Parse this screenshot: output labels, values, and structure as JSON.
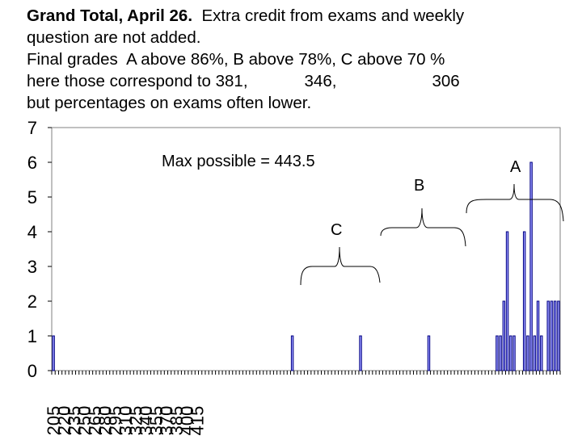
{
  "header": {
    "title_bold": "Grand Total, April 26.",
    "title_rest": "Extra credit from exams and weekly",
    "line2": "question are not added.",
    "line3": "Final grades  A above 86%, B above 78%, C above 70 %",
    "line4_prefix": "here those correspond to 381,",
    "line4_b": "346,",
    "line4_c": "306",
    "line5": "but percentages on exams often lower."
  },
  "chart_data": {
    "type": "bar",
    "title": "",
    "xlabel": "",
    "ylabel": "",
    "ylim": [
      0,
      7
    ],
    "y_ticks": [
      "0",
      "1",
      "2",
      "3",
      "4",
      "5",
      "6",
      "7"
    ],
    "x_tick_labels": [
      "205",
      "220",
      "235",
      "250",
      "265",
      "280",
      "295",
      "310",
      "325",
      "340",
      "355",
      "370",
      "385",
      "400",
      "415"
    ],
    "x_start": 205,
    "x_step": 5,
    "bar_color": "#9999ff",
    "bar_edge": "#000080",
    "grid": false,
    "values": [
      1,
      0,
      0,
      0,
      0,
      0,
      0,
      0,
      0,
      0,
      0,
      0,
      0,
      0,
      0,
      0,
      0,
      0,
      0,
      0,
      0,
      0,
      0,
      0,
      0,
      0,
      0,
      0,
      0,
      0,
      0,
      0,
      0,
      0,
      0,
      0,
      0,
      0,
      0,
      0,
      0,
      0,
      0,
      0,
      0,
      0,
      0,
      0,
      0,
      0,
      0,
      0,
      0,
      0,
      0,
      0,
      0,
      0,
      0,
      0,
      0,
      0,
      0,
      0,
      0,
      0,
      0,
      0,
      0,
      0,
      1,
      0,
      0,
      0,
      0,
      0,
      0,
      0,
      0,
      0,
      0,
      0,
      0,
      0,
      0,
      0,
      0,
      0,
      0,
      0,
      1,
      0,
      0,
      0,
      0,
      0,
      0,
      0,
      0,
      0,
      0,
      0,
      0,
      0,
      0,
      0,
      0,
      0,
      0,
      0,
      1,
      0,
      0,
      0,
      0,
      0,
      0,
      0,
      0,
      0,
      0,
      0,
      0,
      0,
      0,
      0,
      0,
      0,
      0,
      0,
      1,
      1,
      2,
      4,
      1,
      1,
      0,
      0,
      4,
      1,
      6,
      1,
      2,
      1,
      0,
      2,
      2,
      2,
      2
    ],
    "annotations": {
      "max_possible": "Max possible = 443.5",
      "label_a": "A",
      "label_b": "B",
      "label_c": "C"
    }
  }
}
